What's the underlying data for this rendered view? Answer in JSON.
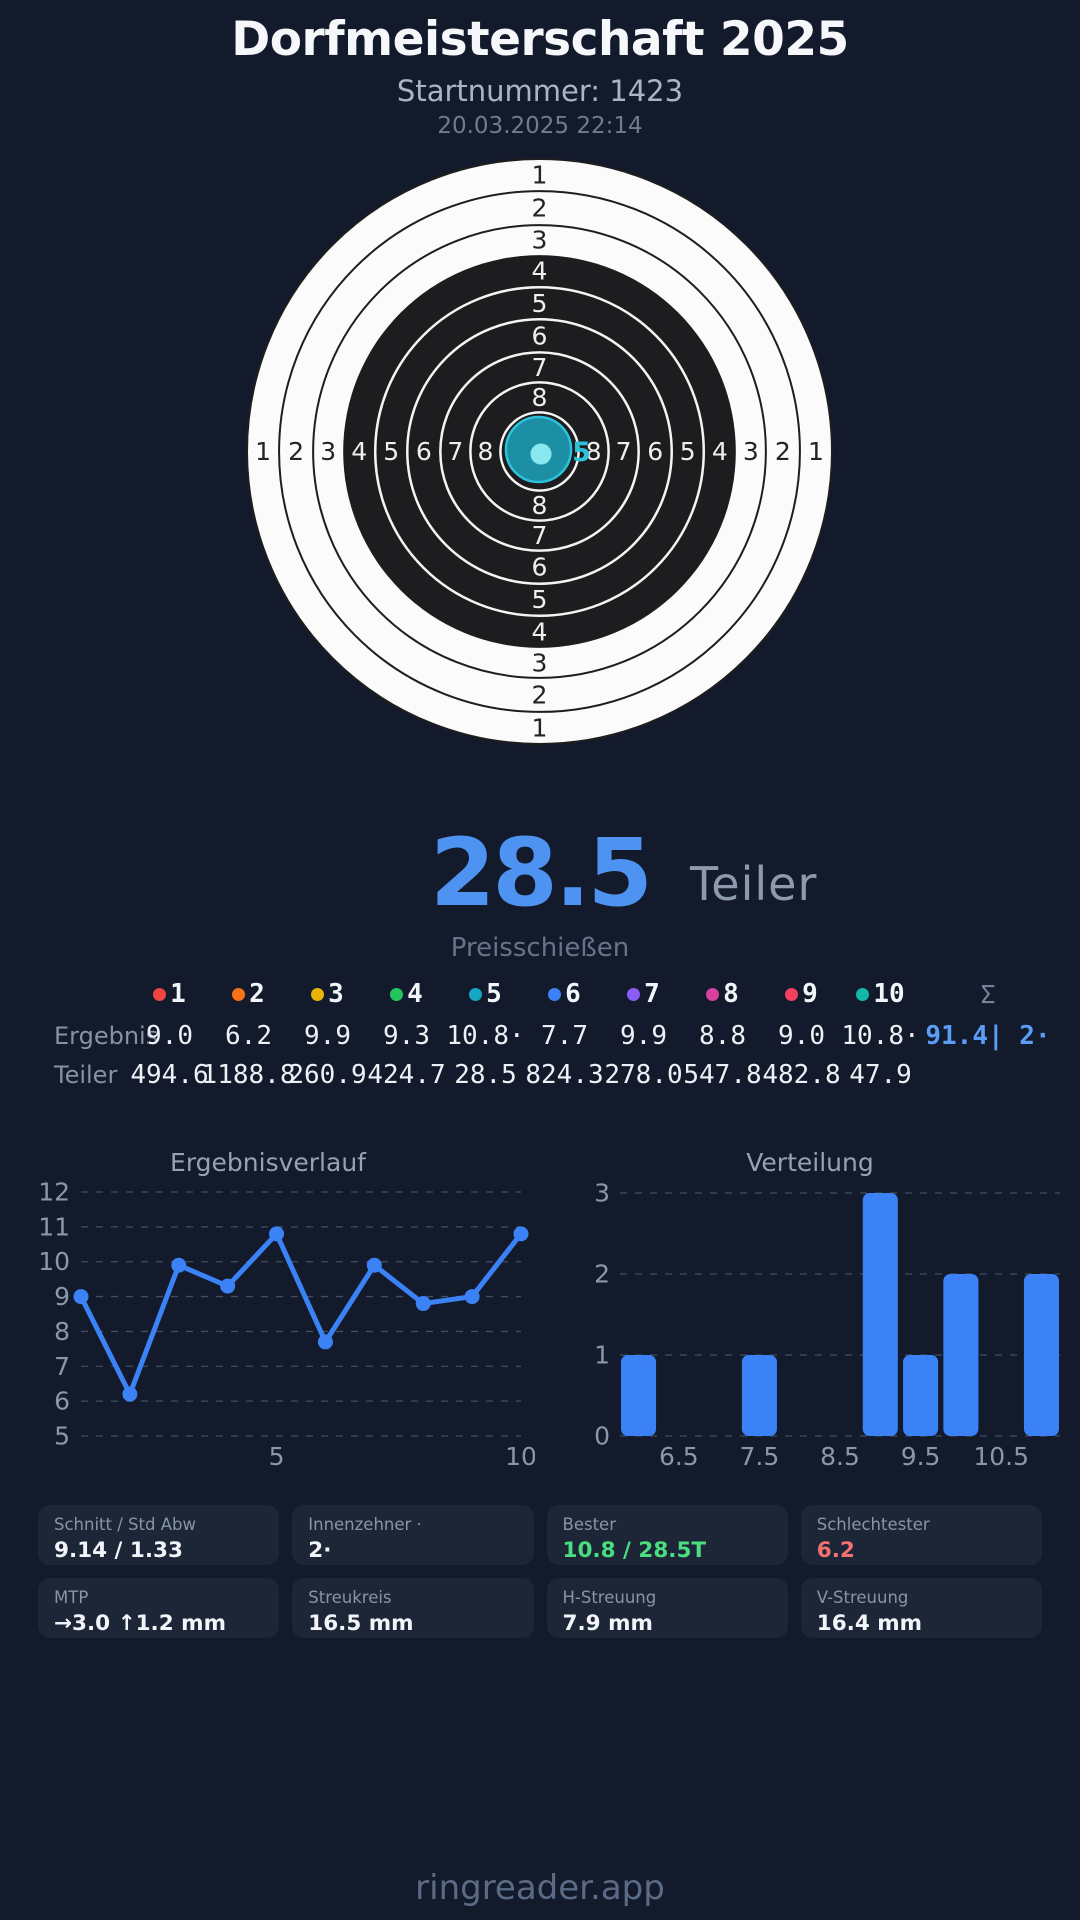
{
  "theme": {
    "background": "#121a2b",
    "accent_blue": "#4e93f2",
    "chart_blue": "#3b82f6",
    "best_green": "#4ade80",
    "worst_red": "#f47171",
    "shot_teal_fill": "#1d96ad",
    "shot_teal_stroke": "#2cc2da",
    "shot_teal_dot": "#87e8f0",
    "card_background": "#1d2636"
  },
  "header": {
    "title": "Dorfmeisterschaft 2025",
    "start_number": "Startnummer: 1423",
    "datetime": "20.03.2025 22:14"
  },
  "target": {
    "ring_labels": [
      1,
      2,
      3,
      4,
      5,
      6,
      7,
      8
    ],
    "best_shot_label": "5",
    "shot_fill": "#1d96ad",
    "shot_stroke": "#2cc2da",
    "shot_dot": "#87e8f0"
  },
  "score": {
    "value": "28.5",
    "unit": "Teiler",
    "mode": "Preisschießen"
  },
  "shots_table": {
    "row_labels": [
      "Ergebnis",
      "Teiler"
    ],
    "sum_symbol": "Σ",
    "sum_ergebnis": "91.4| 2·",
    "sum_teiler": "",
    "shots": [
      {
        "nr": "1",
        "color": "#ef4444",
        "ergebnis": "9.0",
        "teiler": "494.6"
      },
      {
        "nr": "2",
        "color": "#f97316",
        "ergebnis": "6.2",
        "teiler": "1188.8"
      },
      {
        "nr": "3",
        "color": "#eab308",
        "ergebnis": "9.9",
        "teiler": "260.9"
      },
      {
        "nr": "4",
        "color": "#22c55e",
        "ergebnis": "9.3",
        "teiler": "424.7"
      },
      {
        "nr": "5",
        "color": "#14a8c4",
        "ergebnis": "10.8·",
        "teiler": "28.5"
      },
      {
        "nr": "6",
        "color": "#3b82f6",
        "ergebnis": "7.7",
        "teiler": "824.3"
      },
      {
        "nr": "7",
        "color": "#8b5cf6",
        "ergebnis": "9.9",
        "teiler": "278.0"
      },
      {
        "nr": "8",
        "color": "#d6409f",
        "ergebnis": "8.8",
        "teiler": "547.8"
      },
      {
        "nr": "9",
        "color": "#f43f5e",
        "ergebnis": "9.0",
        "teiler": "482.8"
      },
      {
        "nr": "10",
        "color": "#14b8a6",
        "ergebnis": "10.8·",
        "teiler": "47.9"
      }
    ]
  },
  "chart_data": [
    {
      "type": "line",
      "title": "Ergebnisverlauf",
      "x": [
        1,
        2,
        3,
        4,
        5,
        6,
        7,
        8,
        9,
        10
      ],
      "values": [
        9.0,
        6.2,
        9.9,
        9.3,
        10.8,
        7.7,
        9.9,
        8.8,
        9.0,
        10.8
      ],
      "ylim": [
        5,
        12
      ],
      "yticks": [
        5,
        6,
        7,
        8,
        9,
        10,
        11,
        12
      ],
      "xticks": [
        5,
        10
      ],
      "grid": "dashed-horizontal",
      "legend": "none",
      "color": "#3b82f6"
    },
    {
      "type": "bar",
      "title": "Verteilung",
      "bin_centers": [
        6.0,
        7.5,
        9.0,
        9.5,
        10.0,
        11.0
      ],
      "counts": [
        1,
        1,
        3,
        1,
        2,
        2
      ],
      "bar_width_units": 0.435,
      "xlim": [
        5.77,
        11.23
      ],
      "ylim": [
        0,
        3
      ],
      "yticks": [
        0,
        1,
        2,
        3
      ],
      "xticks": [
        6.5,
        7.5,
        8.5,
        9.5,
        10.5
      ],
      "grid": "dashed-horizontal",
      "legend": "none",
      "color": "#3b82f6"
    }
  ],
  "stats_cards": [
    {
      "label": "Schnitt / Std Abw",
      "value": "9.14 / 1.33",
      "value_color": "#f1f4f8"
    },
    {
      "label": "Innenzehner ·",
      "value": "2·",
      "value_color": "#f1f4f8"
    },
    {
      "label": "Bester",
      "value": "10.8 / 28.5T",
      "value_color": "#4ade80"
    },
    {
      "label": "Schlechtester",
      "value": "6.2",
      "value_color": "#f47171"
    },
    {
      "label": "MTP",
      "value": "→3.0 ↑1.2 mm",
      "value_color": "#f1f4f8"
    },
    {
      "label": "Streukreis",
      "value": "16.5 mm",
      "value_color": "#f1f4f8"
    },
    {
      "label": "H-Streuung",
      "value": "7.9 mm",
      "value_color": "#f1f4f8"
    },
    {
      "label": "V-Streuung",
      "value": "16.4 mm",
      "value_color": "#f1f4f8"
    }
  ],
  "footer": {
    "brand": "ringreader.app"
  }
}
